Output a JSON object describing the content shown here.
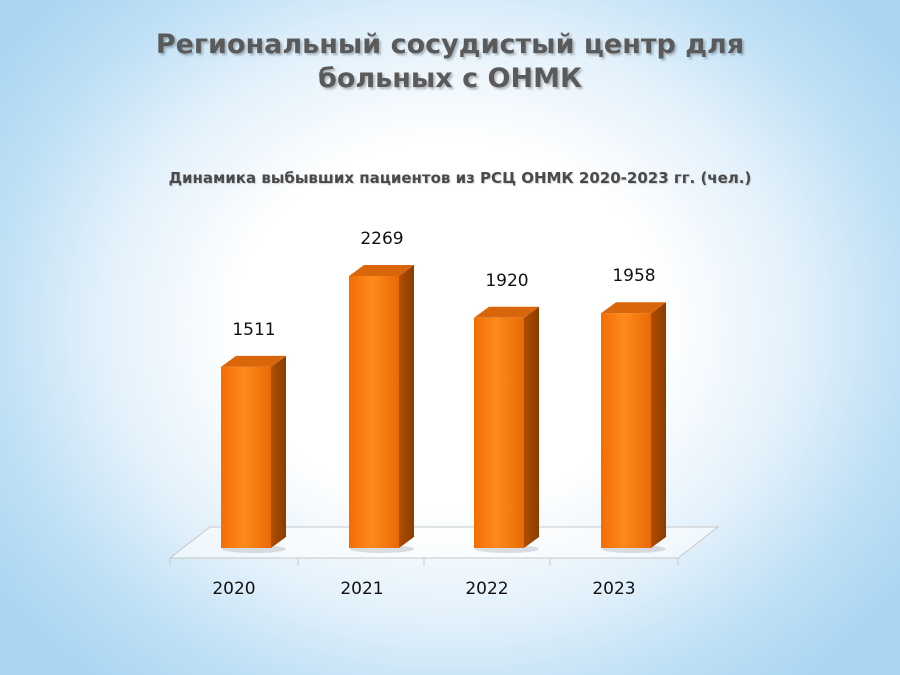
{
  "slide": {
    "title": "Региональный сосудистый центр для больных с ОНМК"
  },
  "chart_data": {
    "type": "bar",
    "title": "Динамика выбывших пациентов из РСЦ ОНМК 2020-2023 гг. (чел.)",
    "categories": [
      "2020",
      "2021",
      "2022",
      "2023"
    ],
    "values": [
      1511,
      2269,
      1920,
      1958
    ],
    "xlabel": "",
    "ylabel": "",
    "ylim": [
      0,
      2269
    ],
    "data_labels": true,
    "grid": false,
    "legend": "none",
    "bar_color": "#f07a10",
    "style": "3d-column"
  }
}
